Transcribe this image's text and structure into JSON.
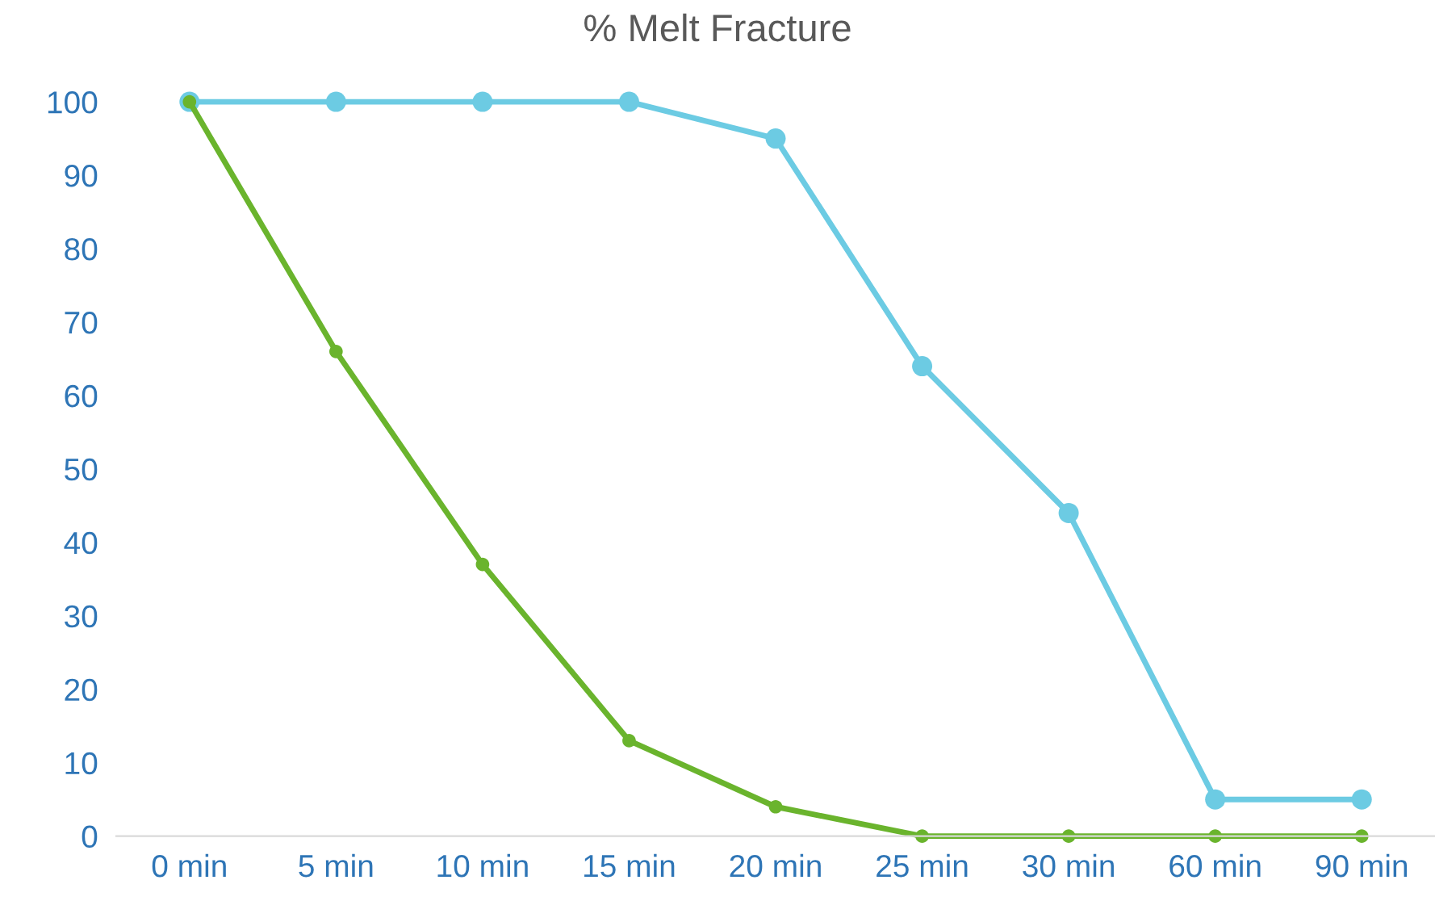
{
  "chart_data": {
    "type": "line",
    "title": "% Melt Fracture",
    "categories": [
      "0 min",
      "5 min",
      "10 min",
      "15 min",
      "20 min",
      "25 min",
      "30 min",
      "60 min",
      "90 min"
    ],
    "series": [
      {
        "color": "#6ccbe3",
        "values": [
          100,
          100,
          100,
          100,
          95,
          64,
          44,
          5,
          5
        ]
      },
      {
        "color": "#6ab42d",
        "values": [
          100,
          66,
          37,
          13,
          4,
          0,
          0,
          0,
          0
        ]
      }
    ],
    "ylim": [
      0,
      100
    ],
    "yticks": [
      0,
      10,
      20,
      30,
      40,
      50,
      60,
      70,
      80,
      90,
      100
    ],
    "grid": false,
    "legend": false,
    "marker": "circle",
    "line_style": "solid"
  }
}
